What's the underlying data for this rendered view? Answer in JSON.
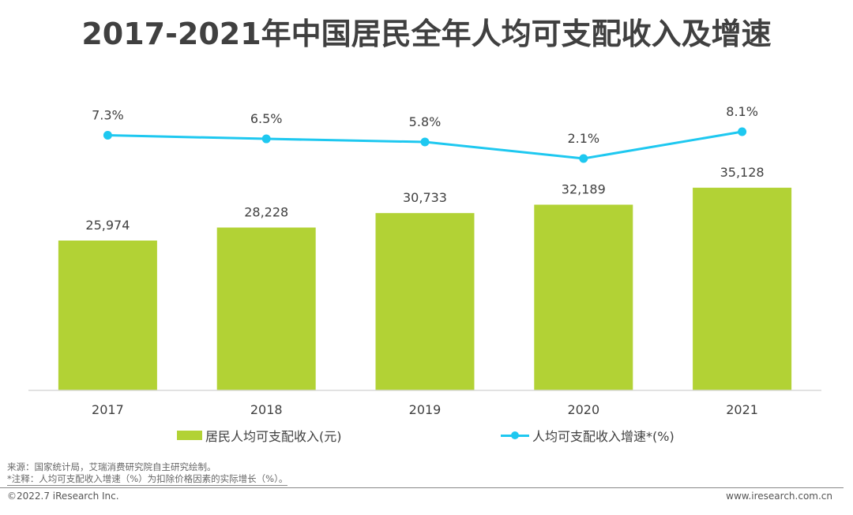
{
  "title": "2017-2021年中国居民全年人均可支配收入及增速",
  "chart_data": {
    "type": "bar",
    "title": "2017-2021年中国居民全年人均可支配收入及增速",
    "categories": [
      "2017",
      "2018",
      "2019",
      "2020",
      "2021"
    ],
    "series": [
      {
        "name": "居民人均可支配收入(元)",
        "type": "bar",
        "color": "#b2d235",
        "values": [
          25974,
          28228,
          30733,
          32189,
          35128
        ],
        "labels": [
          "25,974",
          "28,228",
          "30,733",
          "32,189",
          "35,128"
        ]
      },
      {
        "name": "人均可支配收入增速*(%)",
        "type": "line",
        "color": "#1ec8f0",
        "values": [
          7.3,
          6.5,
          5.8,
          2.1,
          8.1
        ],
        "labels": [
          "7.3%",
          "6.5%",
          "5.8%",
          "2.1%",
          "8.1%"
        ]
      }
    ],
    "xlabel": "",
    "ylabel": "",
    "ylim": [
      0,
      35128
    ],
    "grid": false,
    "legend": "bottom"
  },
  "legend": {
    "bar_label": "居民人均可支配收入(元)",
    "line_label": "人均可支配收入增速*(%)"
  },
  "notes": {
    "source": "来源：国家统计局，艾瑞消费研究院自主研究绘制。",
    "remark": "*注释：人均可支配收入增速（%）为扣除价格因素的实际增长（%）。"
  },
  "footer": {
    "copyright": "©2022.7 iResearch Inc.",
    "website": "www.iresearch.com.cn"
  }
}
